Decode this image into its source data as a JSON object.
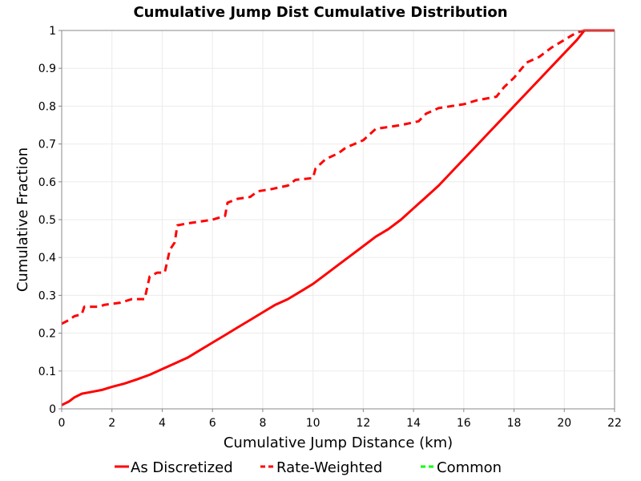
{
  "chart_data": {
    "type": "line",
    "title": "Cumulative Jump Dist Cumulative Distribution",
    "xlabel": "Cumulative Jump Distance (km)",
    "ylabel": "Cumulative Fraction",
    "xlim": [
      0,
      22
    ],
    "ylim": [
      0,
      1
    ],
    "grid": true,
    "legend_position": "bottom",
    "x_ticks": [
      "0",
      "2",
      "4",
      "6",
      "8",
      "10",
      "12",
      "14",
      "16",
      "18",
      "20",
      "22"
    ],
    "y_ticks": [
      "0",
      "0.1",
      "0.2",
      "0.3",
      "0.4",
      "0.5",
      "0.6",
      "0.7",
      "0.8",
      "0.9",
      "1"
    ],
    "series": [
      {
        "name": "As Discretized",
        "color": "#ff0000",
        "style": "solid",
        "points": [
          [
            0,
            0.01
          ],
          [
            0.3,
            0.02
          ],
          [
            0.5,
            0.03
          ],
          [
            0.8,
            0.04
          ],
          [
            1.2,
            0.045
          ],
          [
            1.6,
            0.05
          ],
          [
            2,
            0.058
          ],
          [
            2.5,
            0.067
          ],
          [
            3,
            0.078
          ],
          [
            3.5,
            0.09
          ],
          [
            4,
            0.105
          ],
          [
            4.5,
            0.12
          ],
          [
            5,
            0.135
          ],
          [
            5.5,
            0.155
          ],
          [
            6,
            0.175
          ],
          [
            6.5,
            0.195
          ],
          [
            7,
            0.215
          ],
          [
            7.5,
            0.235
          ],
          [
            8,
            0.255
          ],
          [
            8.5,
            0.275
          ],
          [
            9,
            0.29
          ],
          [
            9.5,
            0.31
          ],
          [
            10,
            0.33
          ],
          [
            10.5,
            0.355
          ],
          [
            11,
            0.38
          ],
          [
            11.5,
            0.405
          ],
          [
            12,
            0.43
          ],
          [
            12.5,
            0.455
          ],
          [
            13,
            0.475
          ],
          [
            13.5,
            0.5
          ],
          [
            14,
            0.53
          ],
          [
            14.5,
            0.56
          ],
          [
            15,
            0.59
          ],
          [
            15.5,
            0.625
          ],
          [
            16,
            0.66
          ],
          [
            16.5,
            0.695
          ],
          [
            17,
            0.73
          ],
          [
            17.5,
            0.765
          ],
          [
            18,
            0.8
          ],
          [
            18.5,
            0.835
          ],
          [
            19,
            0.87
          ],
          [
            19.5,
            0.905
          ],
          [
            20,
            0.94
          ],
          [
            20.5,
            0.975
          ],
          [
            20.8,
            1.0
          ],
          [
            22,
            1.0
          ]
        ]
      },
      {
        "name": "Rate-Weighted",
        "color": "#ff0000",
        "style": "dashed",
        "points": [
          [
            0,
            0.225
          ],
          [
            0.3,
            0.235
          ],
          [
            0.5,
            0.245
          ],
          [
            0.8,
            0.25
          ],
          [
            0.9,
            0.27
          ],
          [
            1.5,
            0.27
          ],
          [
            1.7,
            0.275
          ],
          [
            2.3,
            0.28
          ],
          [
            2.8,
            0.29
          ],
          [
            3.3,
            0.29
          ],
          [
            3.5,
            0.35
          ],
          [
            3.8,
            0.36
          ],
          [
            4.1,
            0.36
          ],
          [
            4.3,
            0.42
          ],
          [
            4.5,
            0.44
          ],
          [
            4.6,
            0.485
          ],
          [
            5,
            0.49
          ],
          [
            5.5,
            0.495
          ],
          [
            6,
            0.5
          ],
          [
            6.5,
            0.51
          ],
          [
            6.6,
            0.545
          ],
          [
            7,
            0.555
          ],
          [
            7.5,
            0.56
          ],
          [
            7.8,
            0.575
          ],
          [
            8.3,
            0.58
          ],
          [
            9,
            0.59
          ],
          [
            9.3,
            0.605
          ],
          [
            10,
            0.61
          ],
          [
            10.1,
            0.635
          ],
          [
            10.5,
            0.66
          ],
          [
            11,
            0.675
          ],
          [
            11.3,
            0.69
          ],
          [
            12,
            0.71
          ],
          [
            12.5,
            0.74
          ],
          [
            13,
            0.745
          ],
          [
            13.5,
            0.75
          ],
          [
            14.2,
            0.76
          ],
          [
            14.5,
            0.78
          ],
          [
            15,
            0.795
          ],
          [
            16,
            0.805
          ],
          [
            16.5,
            0.815
          ],
          [
            17.3,
            0.825
          ],
          [
            17.6,
            0.85
          ],
          [
            18,
            0.875
          ],
          [
            18.5,
            0.915
          ],
          [
            19,
            0.93
          ],
          [
            19.5,
            0.955
          ],
          [
            20,
            0.975
          ],
          [
            20.5,
            0.995
          ],
          [
            20.8,
            1.0
          ],
          [
            22,
            1.0
          ]
        ]
      },
      {
        "name": "Common",
        "color": "#00ff00",
        "style": "dashed",
        "points": []
      }
    ]
  }
}
